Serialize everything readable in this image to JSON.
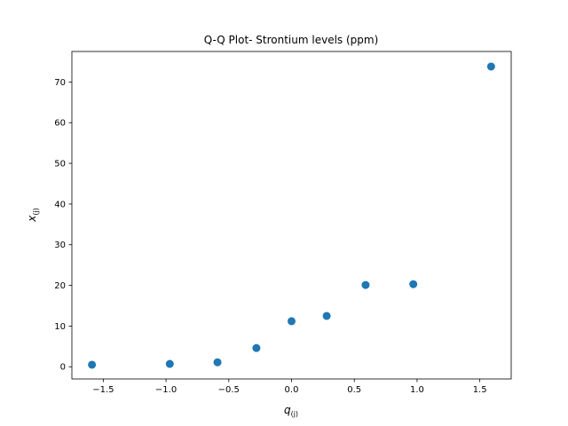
{
  "chart_data": {
    "type": "scatter",
    "title": "Q-Q Plot- Strontium levels (ppm)",
    "xlabel": {
      "base": "q",
      "sub": "(j)"
    },
    "ylabel": {
      "base": "x",
      "sub": "(j)"
    },
    "xlim": [
      -1.75,
      1.75
    ],
    "ylim": [
      -3.0,
      77.5
    ],
    "xticks": [
      -1.5,
      -1.0,
      -0.5,
      0.0,
      0.5,
      1.0,
      1.5
    ],
    "xtick_labels": [
      "−1.5",
      "−1.0",
      "−0.5",
      "0.0",
      "0.5",
      "1.0",
      "1.5"
    ],
    "yticks": [
      0,
      10,
      20,
      30,
      40,
      50,
      60,
      70
    ],
    "ytick_labels": [
      "0",
      "10",
      "20",
      "30",
      "40",
      "50",
      "60",
      "70"
    ],
    "grid": false,
    "marker_color": "#1f77b4",
    "series": [
      {
        "x": [
          -1.59,
          -0.97,
          -0.59,
          -0.28,
          0.0,
          0.28,
          0.59,
          0.97,
          1.59
        ],
        "y": [
          0.5,
          0.7,
          1.1,
          4.6,
          11.2,
          12.5,
          20.1,
          20.3,
          73.8
        ]
      }
    ]
  }
}
